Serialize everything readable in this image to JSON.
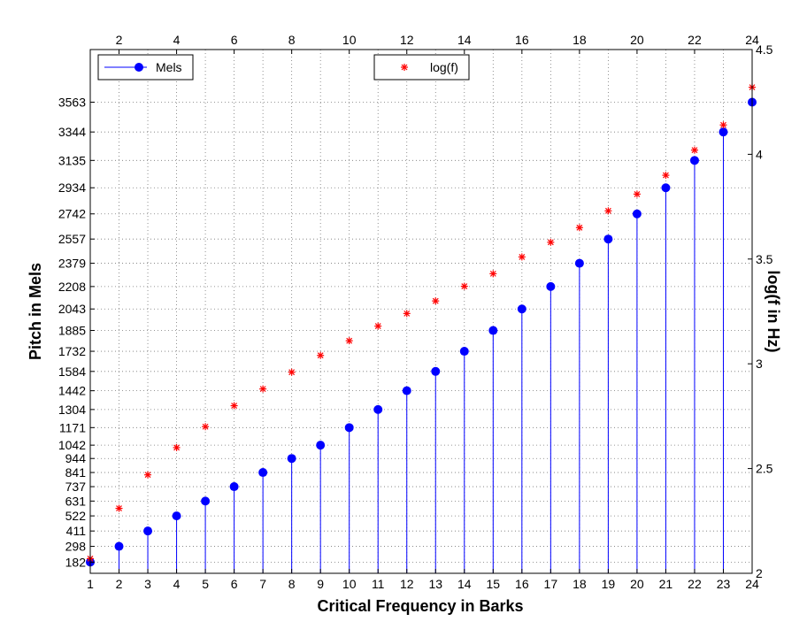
{
  "chart_data": {
    "type": "scatter",
    "xlabel": "Critical Frequency in Barks",
    "ylabel": "Pitch in Mels",
    "y2label": "log(f in Hz)",
    "xlim": [
      1,
      24
    ],
    "ylim": [
      100,
      3950
    ],
    "y2lim": [
      2,
      4.5
    ],
    "x_ticks": [
      1,
      2,
      3,
      4,
      5,
      6,
      7,
      8,
      9,
      10,
      11,
      12,
      13,
      14,
      15,
      16,
      17,
      18,
      19,
      20,
      21,
      22,
      23,
      24
    ],
    "top_x_ticks": [
      2,
      4,
      6,
      8,
      10,
      12,
      14,
      16,
      18,
      20,
      22,
      24
    ],
    "y_ticks": [
      182,
      298,
      411,
      522,
      631,
      737,
      841,
      944,
      1042,
      1171,
      1304,
      1442,
      1584,
      1732,
      1885,
      2043,
      2208,
      2379,
      2557,
      2742,
      2934,
      3135,
      3344,
      3563
    ],
    "y2_ticks": [
      "2",
      "2.5",
      "3",
      "3.5",
      "4",
      "4.5"
    ],
    "grid": true,
    "x": [
      1,
      2,
      3,
      4,
      5,
      6,
      7,
      8,
      9,
      10,
      11,
      12,
      13,
      14,
      15,
      16,
      17,
      18,
      19,
      20,
      21,
      22,
      23,
      24
    ],
    "series": [
      {
        "name": "Mels",
        "style": "stem",
        "color": "#0000ff",
        "axis": "left",
        "values": [
          182,
          298,
          411,
          522,
          631,
          737,
          841,
          944,
          1042,
          1171,
          1304,
          1442,
          1584,
          1732,
          1885,
          2043,
          2208,
          2379,
          2557,
          2742,
          2934,
          3135,
          3344,
          3563
        ]
      },
      {
        "name": "log(f)",
        "style": "star",
        "color": "#ff0000",
        "axis": "right",
        "values": [
          2.07,
          2.31,
          2.47,
          2.6,
          2.7,
          2.8,
          2.88,
          2.96,
          3.04,
          3.11,
          3.18,
          3.24,
          3.3,
          3.37,
          3.43,
          3.51,
          3.58,
          3.65,
          3.73,
          3.81,
          3.9,
          4.02,
          4.14,
          4.32
        ]
      }
    ],
    "legends": [
      {
        "series": "Mels",
        "position": "top-left"
      },
      {
        "series": "log(f)",
        "position": "top-center"
      }
    ]
  }
}
